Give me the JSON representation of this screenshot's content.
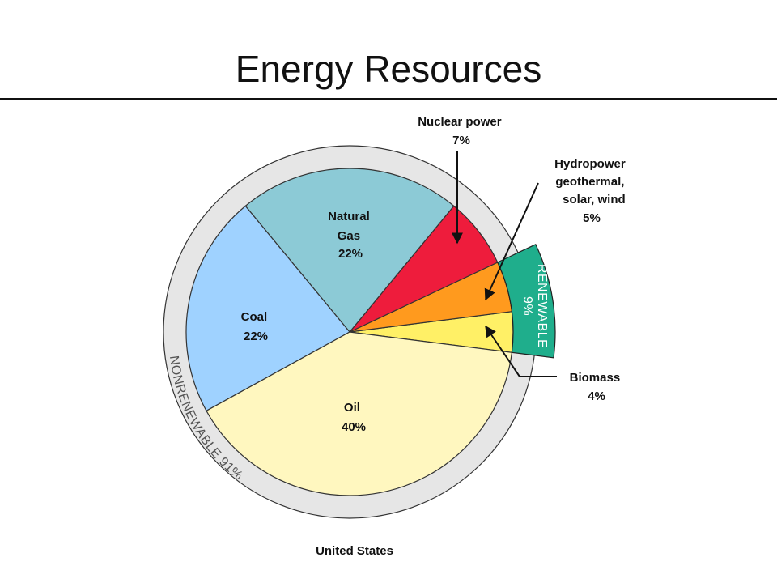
{
  "slide": {
    "title": "Energy Resources"
  },
  "chart_data": {
    "type": "pie",
    "title": "",
    "caption": "United States",
    "slices": [
      {
        "name": "Oil",
        "value": 40,
        "label": "40%",
        "color": "#fff7bf"
      },
      {
        "name": "Coal",
        "value": 22,
        "label": "22%",
        "color": "#9fd2ff"
      },
      {
        "name": "Natural Gas",
        "value": 22,
        "label": "22%",
        "color": "#8ccad6"
      },
      {
        "name": "Nuclear power",
        "value": 7,
        "label": "7%",
        "color": "#ee1c3c"
      },
      {
        "name": "Hydropower geothermal, solar, wind",
        "value": 5,
        "label": "5%",
        "color": "#ff9a1e"
      },
      {
        "name": "Biomass",
        "value": 4,
        "label": "4%",
        "color": "#fff066"
      }
    ],
    "groups": [
      {
        "name": "NONRENEWABLE",
        "value": 91,
        "label": "NONRENEWABLE 91%",
        "color": "#e6e6e6"
      },
      {
        "name": "RENEWABLE",
        "value": 9,
        "label": "9%",
        "color": "#1fae8c"
      }
    ],
    "labels": {
      "oil": [
        "Oil",
        "40%"
      ],
      "coal": [
        "Coal",
        "22%"
      ],
      "gas": [
        "Natural",
        "Gas",
        "22%"
      ],
      "nuclear": [
        "Nuclear power",
        "7%"
      ],
      "hydro": [
        "Hydropower",
        "geothermal,",
        "solar, wind",
        "5%"
      ],
      "biomass": [
        "Biomass",
        "4%"
      ]
    }
  }
}
